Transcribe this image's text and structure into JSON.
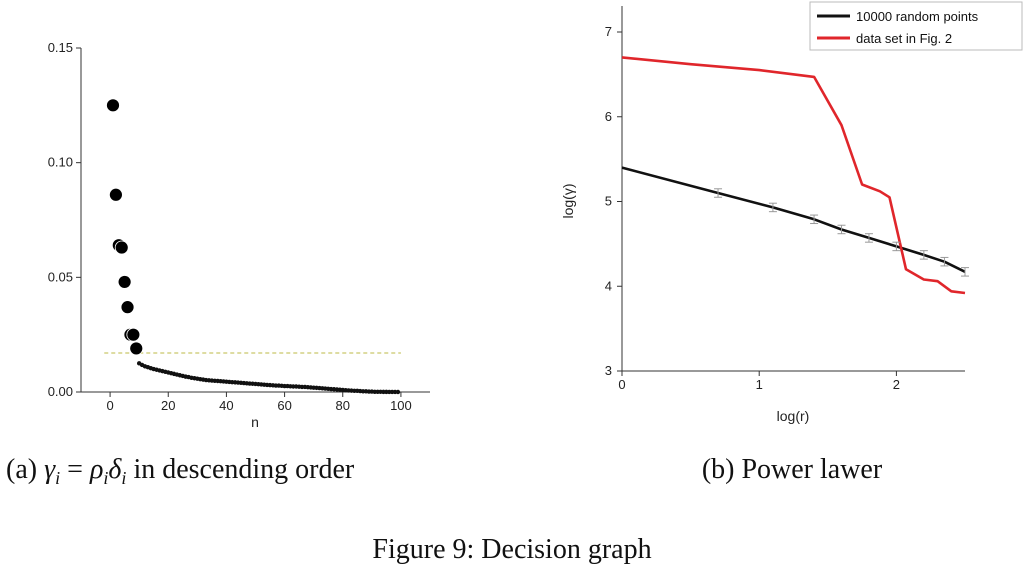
{
  "figure": {
    "caption": "Figure 9: Decision graph",
    "sub_a_label": "(a)",
    "sub_a_math": {
      "gamma": "γ",
      "i": "i",
      "eq": " = ",
      "rho": "ρ",
      "delta": "δ",
      "rest": " in descending order"
    },
    "sub_b": "(b) Power lawer"
  },
  "chart_data": [
    {
      "id": "a",
      "type": "scatter",
      "xlabel": "n",
      "ylabel": "",
      "xlim": [
        -10,
        110
      ],
      "ylim": [
        0,
        0.15
      ],
      "x_ticks": [
        0,
        20,
        40,
        60,
        80,
        100
      ],
      "y_ticks": [
        0.0,
        0.05,
        0.1,
        0.15
      ],
      "x_tick_labels": [
        "0",
        "20",
        "40",
        "60",
        "80",
        "100"
      ],
      "y_tick_labels": [
        "0.00",
        "0.05",
        "0.10",
        "0.15"
      ],
      "threshold": {
        "y": 0.017,
        "x_from": -2,
        "x_to": 100,
        "color": "#c9c76a"
      },
      "large_points": [
        [
          1,
          0.125
        ],
        [
          2,
          0.086
        ],
        [
          3,
          0.064
        ],
        [
          4,
          0.063
        ],
        [
          5,
          0.048
        ],
        [
          6,
          0.037
        ],
        [
          7,
          0.025
        ],
        [
          8,
          0.025
        ],
        [
          9,
          0.019
        ]
      ],
      "small_points": [
        [
          10,
          0.0125
        ],
        [
          11,
          0.0118
        ],
        [
          12,
          0.0112
        ],
        [
          13,
          0.0108
        ],
        [
          14,
          0.0104
        ],
        [
          15,
          0.01
        ],
        [
          16,
          0.0097
        ],
        [
          17,
          0.0094
        ],
        [
          18,
          0.0091
        ],
        [
          19,
          0.0088
        ],
        [
          20,
          0.0085
        ],
        [
          21,
          0.0082
        ],
        [
          22,
          0.0079
        ],
        [
          23,
          0.0076
        ],
        [
          24,
          0.0073
        ],
        [
          25,
          0.007
        ],
        [
          26,
          0.0067
        ],
        [
          27,
          0.0065
        ],
        [
          28,
          0.0062
        ],
        [
          29,
          0.006
        ],
        [
          30,
          0.0058
        ],
        [
          31,
          0.0056
        ],
        [
          32,
          0.0054
        ],
        [
          33,
          0.0052
        ],
        [
          34,
          0.0051
        ],
        [
          35,
          0.005
        ],
        [
          36,
          0.0049
        ],
        [
          37,
          0.0048
        ],
        [
          38,
          0.0047
        ],
        [
          39,
          0.0046
        ],
        [
          40,
          0.0045
        ],
        [
          41,
          0.0044
        ],
        [
          42,
          0.0043
        ],
        [
          43,
          0.0042
        ],
        [
          44,
          0.0041
        ],
        [
          45,
          0.004
        ],
        [
          46,
          0.0039
        ],
        [
          47,
          0.0038
        ],
        [
          48,
          0.0037
        ],
        [
          49,
          0.0036
        ],
        [
          50,
          0.0035
        ],
        [
          51,
          0.0034
        ],
        [
          52,
          0.0033
        ],
        [
          53,
          0.0032
        ],
        [
          54,
          0.0031
        ],
        [
          55,
          0.003
        ],
        [
          56,
          0.0029
        ],
        [
          57,
          0.0028
        ],
        [
          58,
          0.0028
        ],
        [
          59,
          0.0027
        ],
        [
          60,
          0.0026
        ],
        [
          61,
          0.0026
        ],
        [
          62,
          0.0025
        ],
        [
          63,
          0.0024
        ],
        [
          64,
          0.0024
        ],
        [
          65,
          0.0023
        ],
        [
          66,
          0.0022
        ],
        [
          67,
          0.0022
        ],
        [
          68,
          0.0021
        ],
        [
          69,
          0.002
        ],
        [
          70,
          0.0019
        ],
        [
          71,
          0.0018
        ],
        [
          72,
          0.0017
        ],
        [
          73,
          0.0016
        ],
        [
          74,
          0.0015
        ],
        [
          75,
          0.0014
        ],
        [
          76,
          0.0013
        ],
        [
          77,
          0.0012
        ],
        [
          78,
          0.0011
        ],
        [
          79,
          0.001
        ],
        [
          80,
          0.0009
        ],
        [
          81,
          0.0008
        ],
        [
          82,
          0.0007
        ],
        [
          83,
          0.0006
        ],
        [
          84,
          0.0005
        ],
        [
          85,
          0.0005
        ],
        [
          86,
          0.0004
        ],
        [
          87,
          0.0003
        ],
        [
          88,
          0.0003
        ],
        [
          89,
          0.0002
        ],
        [
          90,
          0.0002
        ],
        [
          91,
          0.0001
        ],
        [
          92,
          0.0001
        ],
        [
          93,
          0.0001
        ],
        [
          94,
          5e-05
        ],
        [
          95,
          5e-05
        ],
        [
          96,
          3e-05
        ],
        [
          97,
          2e-05
        ],
        [
          98,
          1e-05
        ],
        [
          99,
          0.0
        ]
      ]
    },
    {
      "id": "b",
      "type": "line",
      "xlabel": "log(r)",
      "ylabel": "log(γ)",
      "xlim": [
        0,
        2.5
      ],
      "ylim": [
        3,
        7
      ],
      "x_ticks": [
        0,
        1,
        2
      ],
      "y_ticks": [
        3,
        4,
        5,
        6,
        7
      ],
      "x_tick_labels": [
        "0",
        "1",
        "2"
      ],
      "y_tick_labels": [
        "3",
        "4",
        "5",
        "6",
        "7"
      ],
      "legend_position": "top-right",
      "series": [
        {
          "name": "10000 random points",
          "color": "#111111",
          "x": [
            0,
            0.7,
            1.1,
            1.4,
            1.6,
            1.8,
            2.0,
            2.2,
            2.35,
            2.5
          ],
          "y": [
            5.4,
            5.1,
            4.93,
            4.79,
            4.67,
            4.57,
            4.47,
            4.37,
            4.29,
            4.17
          ],
          "error_bars": true,
          "error": 0.05
        },
        {
          "name": "data set in Fig. 2",
          "color": "#e0262b",
          "x": [
            0,
            0.5,
            1.0,
            1.4,
            1.6,
            1.75,
            1.88,
            1.95,
            2.07,
            2.2,
            2.3,
            2.4,
            2.5
          ],
          "y": [
            6.7,
            6.62,
            6.55,
            6.47,
            5.9,
            5.2,
            5.12,
            5.05,
            4.2,
            4.08,
            4.06,
            3.94,
            3.92
          ],
          "error_bars": false
        }
      ]
    }
  ]
}
